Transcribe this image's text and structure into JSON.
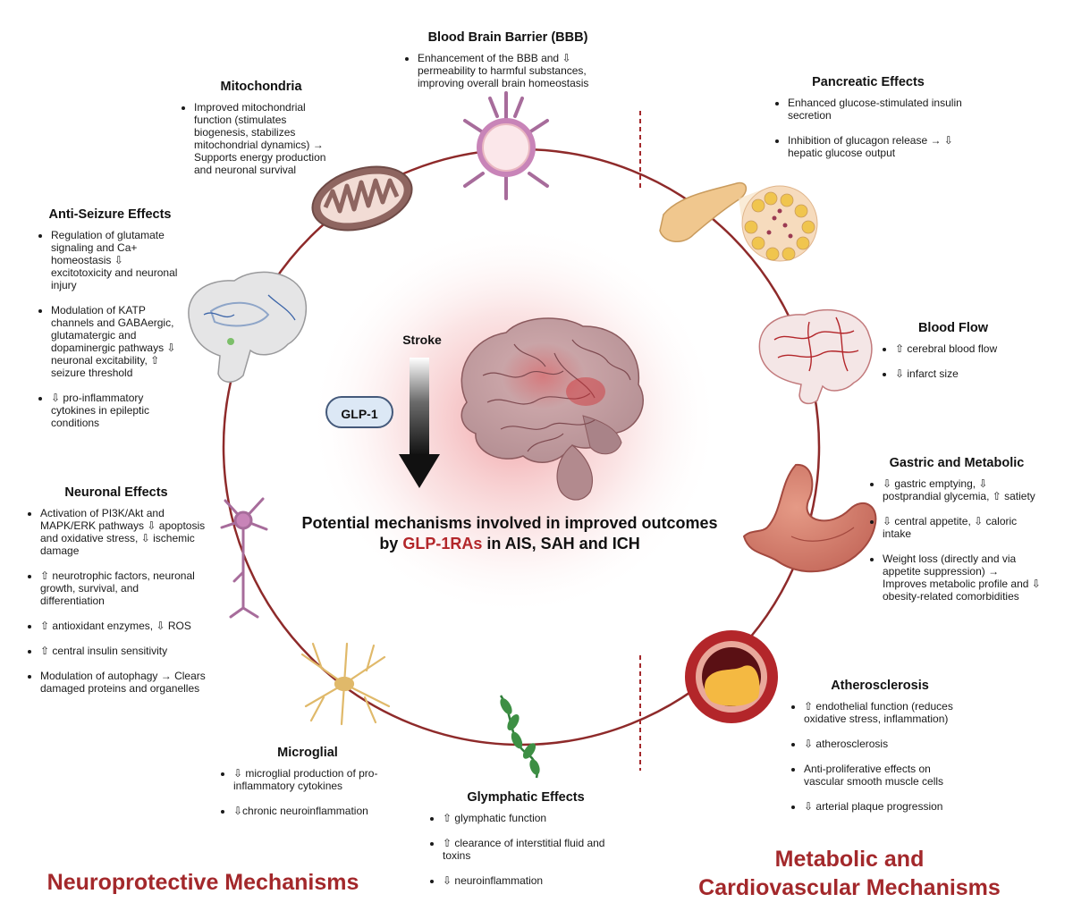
{
  "center": {
    "stroke_label": "Stroke",
    "glp_label": "GLP-1",
    "title_line1": "Potential mechanisms involved in improved outcomes",
    "title_prefix": "by ",
    "title_highlight": "GLP-1RAs",
    "title_suffix": " in AIS, SAH and ICH"
  },
  "categories": {
    "neuroprotective": "Neuroprotective Mechanisms",
    "metabolic_line1": "Metabolic and",
    "metabolic_line2": "Cardiovascular Mechanisms"
  },
  "sections": {
    "bbb": {
      "title": "Blood Brain Barrier (BBB)",
      "items": [
        "Enhancement of the BBB and ⇩ permeability to harmful substances, improving overall brain homeostasis"
      ]
    },
    "mitochondria": {
      "title": "Mitochondria",
      "items": [
        "Improved mitochondrial function (stimulates biogenesis, stabilizes mitochondrial dynamics) → Supports energy production and neuronal survival"
      ]
    },
    "anti_seizure": {
      "title": "Anti-Seizure Effects",
      "items": [
        "Regulation of glutamate signaling and Ca+ homeostasis ⇩ excitotoxicity and neuronal injury",
        "Modulation of KATP channels and GABAergic, glutamatergic and dopaminergic pathways ⇩ neuronal excitability, ⇧ seizure threshold",
        "⇩  pro-inflammatory cytokines in epileptic conditions"
      ]
    },
    "neuronal": {
      "title": "Neuronal Effects",
      "items": [
        "Activation of PI3K/Akt and MAPK/ERK pathways ⇩ apoptosis and oxidative stress, ⇩ ischemic damage",
        "⇧ neurotrophic factors, neuronal growth, survival, and differentiation",
        "⇧ antioxidant enzymes, ⇩ ROS",
        "⇧ central insulin sensitivity",
        "Modulation of autophagy → Clears damaged proteins and organelles"
      ]
    },
    "microglial": {
      "title": "Microglial",
      "items": [
        "⇩ microglial production of pro-inflammatory cytokines",
        "⇩chronic neuroinflammation"
      ]
    },
    "glymphatic": {
      "title": "Glymphatic Effects",
      "items": [
        "⇧ glymphatic function",
        "⇧ clearance of interstitial fluid and toxins",
        "⇩ neuroinflammation"
      ]
    },
    "pancreatic": {
      "title": "Pancreatic Effects",
      "items": [
        "Enhanced glucose-stimulated insulin secretion",
        "Inhibition of glucagon release → ⇩ hepatic glucose output"
      ]
    },
    "blood_flow": {
      "title": "Blood Flow",
      "items": [
        "⇧ cerebral blood flow",
        "⇩ infarct size"
      ]
    },
    "gastric": {
      "title": "Gastric and Metabolic",
      "items": [
        "⇩ gastric emptying, ⇩ postprandial glycemia, ⇧ satiety",
        "⇩ central appetite, ⇩ caloric intake",
        "Weight loss  (directly and via appetite suppression) → Improves metabolic profile and ⇩ obesity-related comorbidities"
      ]
    },
    "atherosclerosis": {
      "title": "Atherosclerosis",
      "items": [
        "⇧  endothelial function (reduces oxidative stress, inflammation)",
        "⇩ atherosclerosis",
        "Anti-proliferative effects on vascular smooth muscle cells",
        "⇩ arterial plaque progression"
      ]
    }
  },
  "colors": {
    "accent_red": "#a3282b",
    "circle": "#8e2a2a",
    "glp_bg": "#dce8f5",
    "arrow": "#111111"
  }
}
